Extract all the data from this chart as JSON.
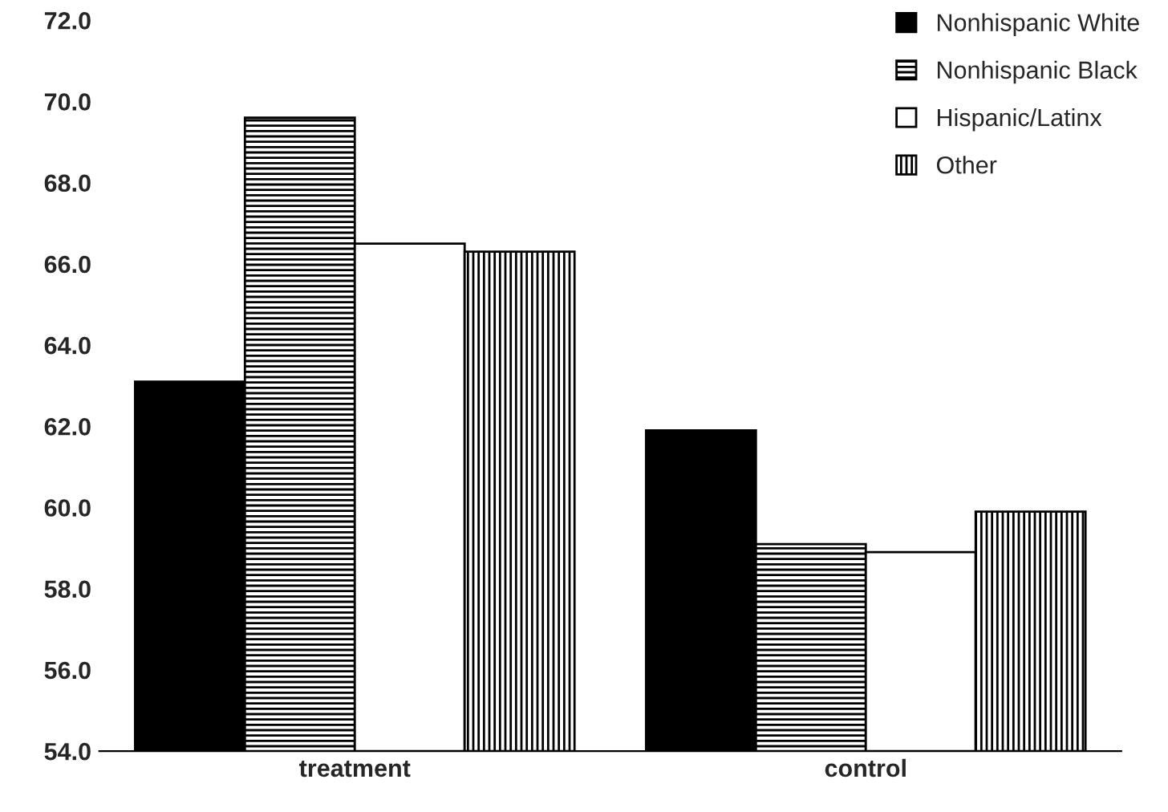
{
  "chart_data": {
    "type": "bar",
    "categories": [
      "treatment",
      "control"
    ],
    "series": [
      {
        "name": "Nonhispanic White",
        "color": "#000000",
        "values": [
          63.1,
          61.9
        ]
      },
      {
        "name": "Nonhispanic Black",
        "color": "#000000",
        "values": [
          69.6,
          59.1
        ]
      },
      {
        "name": "Hispanic/Latinx",
        "color": "#ffffff",
        "values": [
          66.5,
          58.9
        ]
      },
      {
        "name": "Other",
        "color": "#000000",
        "values": [
          66.3,
          59.9
        ]
      }
    ],
    "ylim": [
      54,
      72
    ],
    "yticks": [
      {
        "value": 54,
        "label": "54.0"
      },
      {
        "value": 56,
        "label": "56.0"
      },
      {
        "value": 58,
        "label": "58.0"
      },
      {
        "value": 60,
        "label": "60.0"
      },
      {
        "value": 62,
        "label": "62.0"
      },
      {
        "value": 64,
        "label": "64.0"
      },
      {
        "value": 66,
        "label": "66.0"
      },
      {
        "value": 68,
        "label": "68.0"
      },
      {
        "value": 70,
        "label": "70.0"
      },
      {
        "value": 72,
        "label": "72.0"
      }
    ],
    "grid": false,
    "legend": "top right"
  }
}
